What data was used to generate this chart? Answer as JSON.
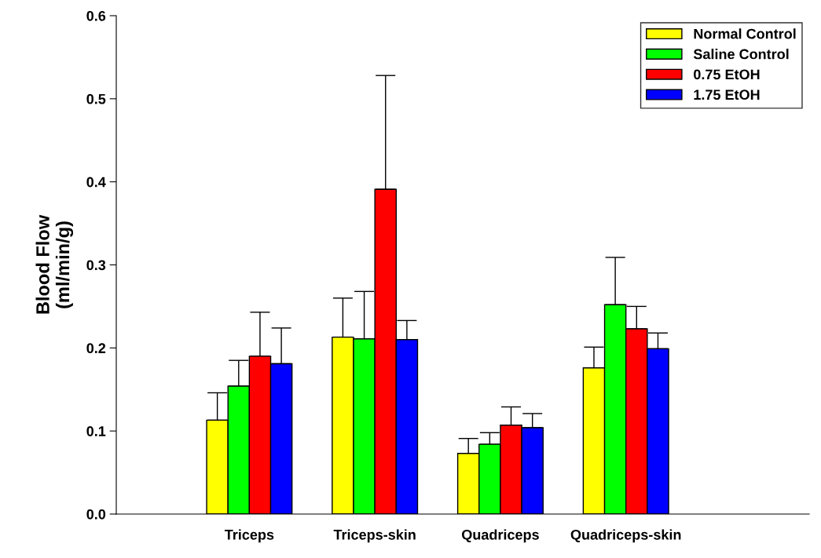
{
  "chart_data": {
    "type": "bar",
    "ylabel": "Blood Flow\n(ml/min/g)",
    "categories": [
      "Triceps",
      "Triceps-skin",
      "Quadriceps",
      "Quadriceps-skin"
    ],
    "series": [
      {
        "name": "Normal Control",
        "color": "#ffff00",
        "values": [
          0.113,
          0.213,
          0.073,
          0.176
        ],
        "errors": [
          [
            0.113,
            0.146
          ],
          [
            0.213,
            0.26
          ],
          [
            0.073,
            0.091
          ],
          [
            0.176,
            0.201
          ]
        ]
      },
      {
        "name": "Saline Control",
        "color": "#00ff00",
        "values": [
          0.154,
          0.211,
          0.084,
          0.252
        ],
        "errors": [
          [
            0.154,
            0.185
          ],
          [
            0.211,
            0.268
          ],
          [
            0.084,
            0.098
          ],
          [
            0.252,
            0.309
          ]
        ]
      },
      {
        "name": "0.75 EtOH",
        "color": "#ff0000",
        "values": [
          0.19,
          0.391,
          0.107,
          0.223
        ],
        "errors": [
          [
            0.19,
            0.243
          ],
          [
            0.391,
            0.528
          ],
          [
            0.107,
            0.129
          ],
          [
            0.223,
            0.25
          ]
        ]
      },
      {
        "name": "1.75 EtOH",
        "color": "#0000ff",
        "values": [
          0.181,
          0.21,
          0.104,
          0.199
        ],
        "errors": [
          [
            0.181,
            0.224
          ],
          [
            0.21,
            0.233
          ],
          [
            0.104,
            0.121
          ],
          [
            0.199,
            0.218
          ]
        ]
      }
    ],
    "ylim": [
      0,
      0.6
    ],
    "yticks": [
      {
        "value": 0,
        "label": "0.0"
      },
      0.1,
      0.2,
      0.3,
      0.4,
      0.5,
      0.6
    ],
    "grid": false,
    "legend": "top right"
  }
}
